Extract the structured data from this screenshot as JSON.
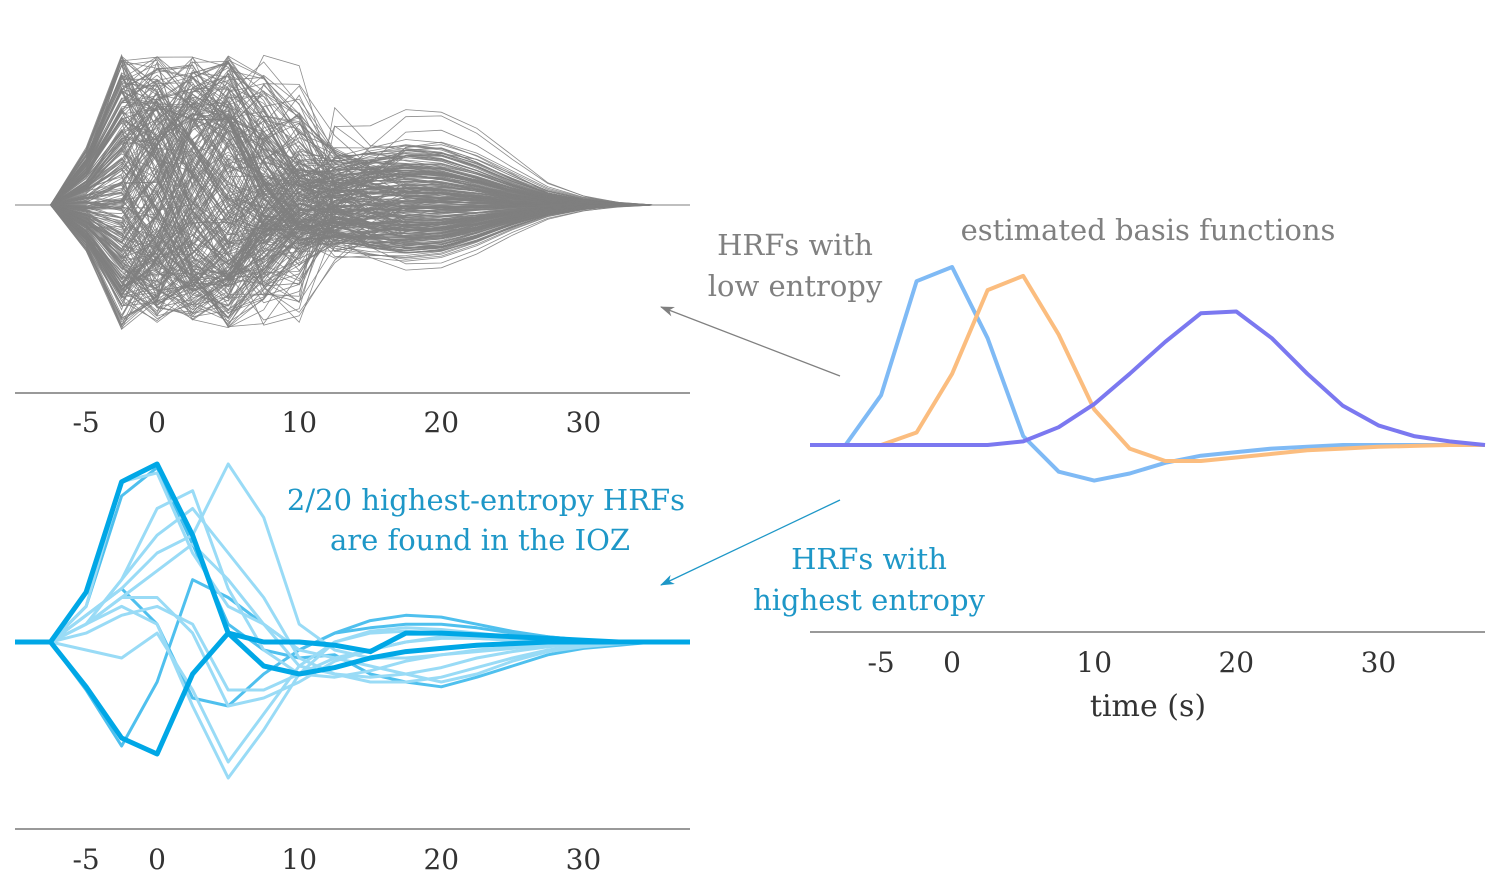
{
  "colors": {
    "gray": "#808080",
    "axis": "#333333",
    "blue_main": "#00a7e6",
    "blue_mid": "#4fc0ee",
    "blue_light": "#99dbf6",
    "basis_blue": "#7fbaf5",
    "basis_orange": "#fbbd7f",
    "basis_purple": "#7b78f0",
    "annotation_teal": "#1e97c7"
  },
  "annotations": {
    "low_entropy_line1": "HRFs with",
    "low_entropy_line2": "low entropy",
    "basis_title": "estimated basis functions",
    "ioz_line1": "2/20 highest-entropy HRFs",
    "ioz_line2": "are found in the IOZ",
    "high_entropy_line1": "HRFs with",
    "high_entropy_line2": "highest entropy"
  },
  "chart_data": [
    {
      "id": "low-entropy",
      "type": "line",
      "title": "",
      "xlabel": "",
      "ylabel": "",
      "xlim": [
        -10,
        37.5
      ],
      "ylim": [
        -1.0,
        1.3
      ],
      "xticks": [
        -5,
        0,
        10,
        20,
        30
      ],
      "xticklabels": [
        "-5",
        "0",
        "10",
        "20",
        "30"
      ],
      "grid": false,
      "x": [
        -10,
        -7.5,
        -5,
        -2.5,
        0,
        2.5,
        5,
        7.5,
        10,
        12.5,
        15,
        17.5,
        20,
        22.5,
        25,
        27.5,
        30,
        32.5,
        35,
        37.5
      ],
      "series_count": 300,
      "representative_series": [
        {
          "values": [
            0,
            0,
            0.35,
            1.0,
            0.85,
            0.25,
            -0.35,
            -0.6,
            -0.5,
            -0.3,
            -0.3,
            -0.28,
            -0.25,
            -0.18,
            -0.1,
            -0.05,
            -0.02,
            0,
            0,
            0
          ]
        },
        {
          "values": [
            0,
            0,
            0.15,
            0.45,
            0.75,
            0.95,
            0.85,
            0.45,
            0.05,
            -0.2,
            -0.3,
            -0.35,
            -0.33,
            -0.25,
            -0.15,
            -0.07,
            -0.03,
            -0.01,
            0,
            0
          ]
        },
        {
          "values": [
            0,
            0,
            -0.25,
            -0.6,
            -0.2,
            0.55,
            0.75,
            0.35,
            -0.05,
            0.1,
            0.15,
            0.2,
            0.2,
            0.16,
            0.1,
            0.05,
            0.02,
            0,
            0,
            0
          ]
        },
        {
          "values": [
            0,
            0,
            0.1,
            0.25,
            -0.35,
            -0.65,
            -0.75,
            -0.25,
            0.1,
            0.18,
            0.1,
            0.05,
            0.03,
            0.02,
            0.01,
            0,
            0,
            0,
            0,
            0
          ]
        }
      ]
    },
    {
      "id": "basis-functions",
      "type": "line",
      "title": "estimated basis functions",
      "xlabel": "time (s)",
      "ylabel": "",
      "xlim": [
        -10,
        37.5
      ],
      "ylim": [
        -0.3,
        1.05
      ],
      "xticks": [
        -5,
        0,
        10,
        20,
        30
      ],
      "xticklabels": [
        "-5",
        "0",
        "10",
        "20",
        "30"
      ],
      "grid": false,
      "x": [
        -10,
        -7.5,
        -5,
        -2.5,
        0,
        2.5,
        5,
        7.5,
        10,
        12.5,
        15,
        17.5,
        20,
        22.5,
        25,
        27.5,
        30,
        32.5,
        35,
        37.5
      ],
      "series": [
        {
          "color": "#7fbaf5",
          "values": [
            0,
            0,
            0.28,
            0.92,
            1.0,
            0.6,
            0.05,
            -0.15,
            -0.2,
            -0.16,
            -0.1,
            -0.06,
            -0.04,
            -0.02,
            -0.01,
            0,
            0,
            0,
            0,
            0
          ]
        },
        {
          "color": "#fbbd7f",
          "values": [
            0,
            0,
            0,
            0.07,
            0.4,
            0.87,
            0.95,
            0.62,
            0.2,
            -0.02,
            -0.09,
            -0.09,
            -0.07,
            -0.05,
            -0.03,
            -0.02,
            -0.01,
            -0.005,
            0,
            0
          ]
        },
        {
          "color": "#7b78f0",
          "values": [
            0,
            0,
            0,
            0,
            0,
            0,
            0.02,
            0.1,
            0.23,
            0.4,
            0.58,
            0.74,
            0.75,
            0.6,
            0.4,
            0.22,
            0.11,
            0.05,
            0.02,
            0
          ]
        }
      ]
    },
    {
      "id": "high-entropy",
      "type": "line",
      "title": "",
      "xlabel": "",
      "ylabel": "",
      "xlim": [
        -10,
        37.5
      ],
      "ylim": [
        -1.1,
        1.05
      ],
      "xticks": [
        -5,
        0,
        10,
        20,
        30
      ],
      "xticklabels": [
        "-5",
        "0",
        "10",
        "20",
        "30"
      ],
      "grid": false,
      "x": [
        -10,
        -7.5,
        -5,
        -2.5,
        0,
        2.5,
        5,
        7.5,
        10,
        12.5,
        15,
        17.5,
        20,
        22.5,
        25,
        27.5,
        30,
        32.5,
        35,
        37.5
      ],
      "series": [
        {
          "shade": "main",
          "width": 5,
          "values": [
            0,
            0,
            0.28,
            0.9,
            1.0,
            0.6,
            0.05,
            -0.15,
            -0.2,
            -0.16,
            -0.1,
            -0.06,
            -0.04,
            -0.02,
            -0.01,
            0,
            0,
            0,
            0,
            0
          ]
        },
        {
          "shade": "main",
          "width": 5,
          "values": [
            0,
            0,
            -0.28,
            -0.6,
            -0.7,
            -0.2,
            0.05,
            0.0,
            0.0,
            -0.02,
            -0.06,
            0.05,
            0.05,
            0.04,
            0.03,
            0.02,
            0.01,
            0,
            0,
            0
          ]
        },
        {
          "shade": "mid",
          "width": 3,
          "values": [
            0,
            0,
            0.2,
            0.82,
            0.98,
            0.55,
            0.1,
            -0.05,
            -0.1,
            -0.08,
            -0.2,
            -0.25,
            -0.28,
            -0.22,
            -0.15,
            -0.08,
            -0.04,
            -0.02,
            0,
            0
          ]
        },
        {
          "shade": "mid",
          "width": 3,
          "values": [
            0,
            0,
            -0.3,
            -0.65,
            -0.25,
            0.35,
            0.25,
            0.1,
            -0.05,
            0.05,
            0.08,
            0.1,
            0.1,
            0.08,
            0.05,
            0.03,
            0.01,
            0,
            0,
            0
          ]
        },
        {
          "shade": "mid",
          "width": 3,
          "values": [
            0,
            0,
            0.15,
            0.3,
            0.1,
            -0.35,
            -0.4,
            -0.2,
            -0.05,
            0.05,
            0.12,
            0.15,
            0.14,
            0.1,
            0.06,
            0.03,
            0.01,
            0,
            0,
            0
          ]
        },
        {
          "shade": "light",
          "width": 3,
          "values": [
            0,
            0,
            0.2,
            0.9,
            0.95,
            0.5,
            0.2,
            0.1,
            -0.05,
            -0.1,
            -0.15,
            -0.2,
            -0.25,
            -0.2,
            -0.12,
            -0.06,
            -0.03,
            -0.01,
            0,
            0
          ]
        },
        {
          "shade": "light",
          "width": 3,
          "values": [
            0,
            0,
            0.1,
            0.35,
            0.6,
            0.75,
            0.5,
            0.25,
            -0.1,
            -0.2,
            -0.25,
            -0.25,
            -0.22,
            -0.16,
            -0.1,
            -0.05,
            -0.02,
            -0.01,
            0,
            0
          ]
        },
        {
          "shade": "light",
          "width": 3,
          "values": [
            0,
            0,
            0.15,
            0.3,
            0.5,
            0.6,
            1.0,
            0.7,
            0.1,
            -0.05,
            -0.1,
            -0.1,
            -0.08,
            -0.06,
            -0.04,
            -0.02,
            -0.01,
            0,
            0,
            0
          ]
        },
        {
          "shade": "light",
          "width": 3,
          "values": [
            0,
            0,
            0.1,
            0.2,
            0.1,
            -0.4,
            -0.85,
            -0.55,
            -0.2,
            0.0,
            0.05,
            0.06,
            0.05,
            0.04,
            0.02,
            0.01,
            0,
            0,
            0,
            0
          ]
        },
        {
          "shade": "light",
          "width": 3,
          "values": [
            0,
            0,
            0.05,
            0.15,
            0.2,
            0.1,
            -0.3,
            -0.3,
            -0.2,
            -0.1,
            -0.05,
            0.0,
            0.02,
            0.02,
            0.01,
            0,
            0,
            0,
            0,
            0
          ]
        },
        {
          "shade": "light",
          "width": 3,
          "values": [
            0,
            0,
            0.1,
            0.25,
            0.4,
            0.55,
            0.35,
            0.1,
            -0.15,
            -0.2,
            -0.22,
            -0.2,
            -0.16,
            -0.1,
            -0.06,
            -0.03,
            -0.01,
            0,
            0,
            0
          ]
        },
        {
          "shade": "light",
          "width": 3,
          "values": [
            0,
            0,
            -0.05,
            -0.1,
            0.05,
            -0.3,
            -0.75,
            -0.45,
            -0.15,
            0.0,
            0.06,
            0.08,
            0.07,
            0.05,
            0.03,
            0.01,
            0,
            0,
            0,
            0
          ]
        },
        {
          "shade": "light",
          "width": 3,
          "values": [
            0,
            0,
            0.1,
            0.25,
            0.25,
            0.05,
            -0.4,
            -0.35,
            -0.25,
            -0.12,
            -0.05,
            0.0,
            0.03,
            0.02,
            0.01,
            0,
            0,
            0,
            0,
            0
          ]
        },
        {
          "shade": "light",
          "width": 3,
          "values": [
            0,
            0,
            0.1,
            0.35,
            0.75,
            0.85,
            0.3,
            -0.05,
            -0.2,
            -0.22,
            -0.18,
            -0.12,
            -0.08,
            -0.05,
            -0.03,
            -0.01,
            0,
            0,
            0,
            0
          ]
        }
      ]
    }
  ]
}
